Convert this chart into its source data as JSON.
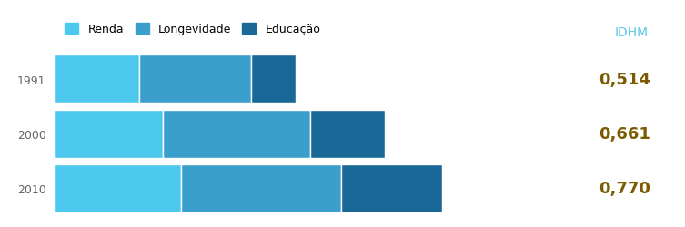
{
  "years": [
    "1991",
    "2000",
    "2010"
  ],
  "idhm_values": [
    "0,514",
    "0,661",
    "0,770"
  ],
  "renda_values": [
    0.159,
    0.204,
    0.238
  ],
  "longevidade_values": [
    0.21,
    0.277,
    0.302
  ],
  "educacao_values": [
    0.085,
    0.14,
    0.19
  ],
  "color_renda": "#4DC8EE",
  "color_longevidade": "#3A9FCC",
  "color_educacao": "#1A6898",
  "color_idhm_label": "#7B5B00",
  "color_idhm_header": "#5BC8E8",
  "legend_labels": [
    "Renda",
    "Longevidade",
    "Educação"
  ],
  "title": "IDHM",
  "figsize": [
    7.53,
    2.51
  ],
  "dpi": 100
}
